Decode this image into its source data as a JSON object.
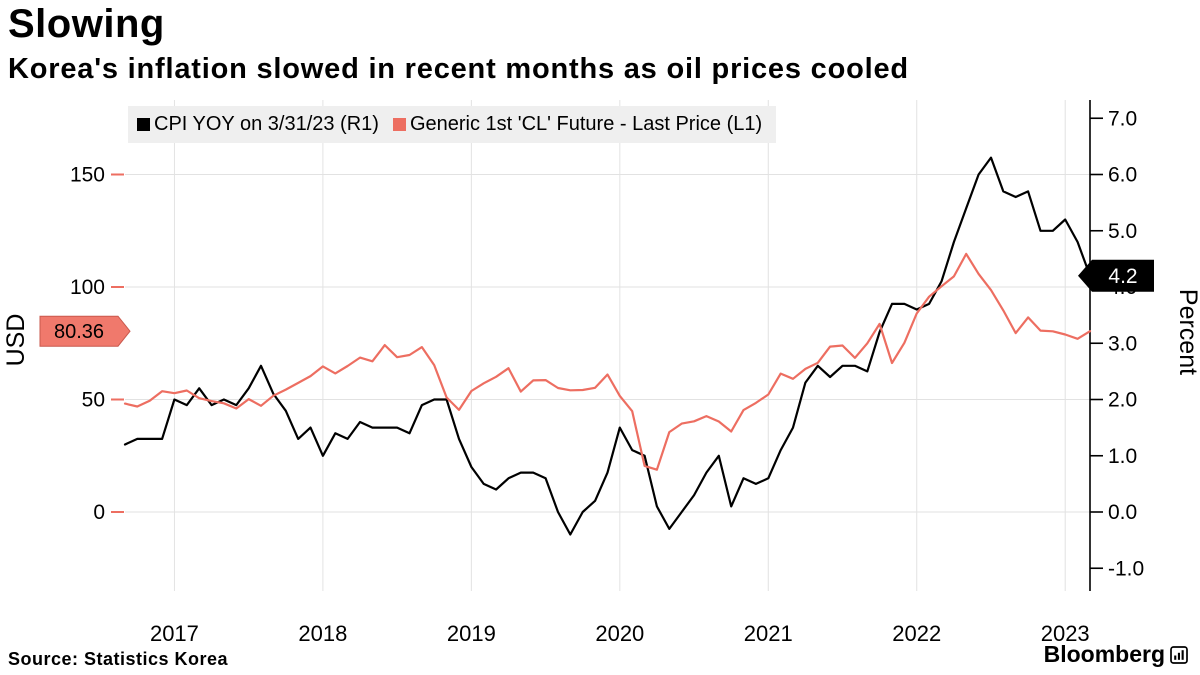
{
  "title": "Slowing",
  "subtitle": "Korea's inflation slowed in recent months as oil prices cooled",
  "source": "Source:  Statistics Korea",
  "branding": {
    "logo_text": "Bloomberg"
  },
  "legend": [
    {
      "label": "CPI YOY on 3/31/23 (R1)",
      "color": "#000000"
    },
    {
      "label": "Generic 1st 'CL' Future - Last Price (L1)",
      "color": "#ed6e61"
    }
  ],
  "chart_data": {
    "type": "line",
    "title": "Slowing",
    "subtitle": "Korea's inflation slowed in recent months as oil prices cooled",
    "grid": true,
    "legend_position": "top-left",
    "x_start": "2016-09",
    "frequency": "monthly",
    "x_axis": {
      "range": [
        2016.667,
        2023.167
      ],
      "ticks": [
        {
          "v": 2017,
          "label": "2017"
        },
        {
          "v": 2018,
          "label": "2018"
        },
        {
          "v": 2019,
          "label": "2019"
        },
        {
          "v": 2020,
          "label": "2020"
        },
        {
          "v": 2021,
          "label": "2021"
        },
        {
          "v": 2022,
          "label": "2022"
        },
        {
          "v": 2023,
          "label": "2023"
        }
      ]
    },
    "left_axis": {
      "title": "USD",
      "range": [
        -25,
        175
      ],
      "tick_color": "#ed6e61",
      "ticks": [
        {
          "v": 150,
          "label": "150"
        },
        {
          "v": 100,
          "label": "100"
        },
        {
          "v": 50,
          "label": "50"
        },
        {
          "v": 0,
          "label": "0"
        }
      ],
      "marker": {
        "value": 80.36,
        "label": "80.36",
        "bg": "#f0796c",
        "border": "#c9594d",
        "text_color": "#000000"
      }
    },
    "right_axis": {
      "title": "Percent",
      "range": [
        -1,
        7
      ],
      "tick_color": "#000000",
      "ticks": [
        {
          "v": 7,
          "label": "7.0"
        },
        {
          "v": 6,
          "label": "6.0"
        },
        {
          "v": 5,
          "label": "5.0"
        },
        {
          "v": 4,
          "label": "4.0"
        },
        {
          "v": 3,
          "label": "3.0"
        },
        {
          "v": 2,
          "label": "2.0"
        },
        {
          "v": 1,
          "label": "1.0"
        },
        {
          "v": 0,
          "label": "0.0"
        },
        {
          "v": -1,
          "label": "-1.0"
        }
      ],
      "marker": {
        "value": 4.2,
        "label": "4.2",
        "bg": "#000000",
        "border": "#000000",
        "text_color": "#ffffff"
      }
    },
    "series": [
      {
        "id": "cpi",
        "name": "CPI YOY on 3/31/23 (R1)",
        "axis": "right",
        "color": "#000000",
        "values": [
          1.2,
          1.3,
          1.3,
          1.3,
          2.0,
          1.9,
          2.2,
          1.9,
          2.0,
          1.9,
          2.2,
          2.6,
          2.1,
          1.8,
          1.3,
          1.5,
          1.0,
          1.4,
          1.3,
          1.6,
          1.5,
          1.5,
          1.5,
          1.4,
          1.9,
          2.0,
          2.0,
          1.3,
          0.8,
          0.5,
          0.4,
          0.6,
          0.7,
          0.7,
          0.6,
          0.0,
          -0.4,
          0.0,
          0.2,
          0.7,
          1.5,
          1.1,
          1.0,
          0.1,
          -0.3,
          0.0,
          0.3,
          0.7,
          1.0,
          0.1,
          0.6,
          0.5,
          0.6,
          1.1,
          1.5,
          2.3,
          2.6,
          2.4,
          2.6,
          2.6,
          2.5,
          3.2,
          3.7,
          3.7,
          3.6,
          3.7,
          4.1,
          4.8,
          5.4,
          6.0,
          6.3,
          5.7,
          5.6,
          5.7,
          5.0,
          5.0,
          5.2,
          4.8,
          4.2
        ]
      },
      {
        "id": "oil",
        "name": "Generic 1st 'CL' Future - Last Price (L1)",
        "axis": "left",
        "color": "#ed6e61",
        "values": [
          48.2,
          46.9,
          49.4,
          53.7,
          52.8,
          54.0,
          50.6,
          49.3,
          48.3,
          46.0,
          50.2,
          47.2,
          51.7,
          54.4,
          57.4,
          60.4,
          64.7,
          61.6,
          64.9,
          68.6,
          67.0,
          74.2,
          68.8,
          69.8,
          73.3,
          65.3,
          50.9,
          45.4,
          53.8,
          57.2,
          60.1,
          63.9,
          53.5,
          58.5,
          58.6,
          55.1,
          54.1,
          54.2,
          55.2,
          61.1,
          51.6,
          44.8,
          20.5,
          18.8,
          35.5,
          39.3,
          40.3,
          42.6,
          40.2,
          35.8,
          45.3,
          48.5,
          52.2,
          61.5,
          59.2,
          63.6,
          66.3,
          73.5,
          74.0,
          68.5,
          75.0,
          83.6,
          66.2,
          75.2,
          88.2,
          95.7,
          100.3,
          104.7,
          114.7,
          105.8,
          98.6,
          89.6,
          79.5,
          86.5,
          80.6,
          80.3,
          78.9,
          77.0,
          80.36
        ]
      }
    ]
  }
}
